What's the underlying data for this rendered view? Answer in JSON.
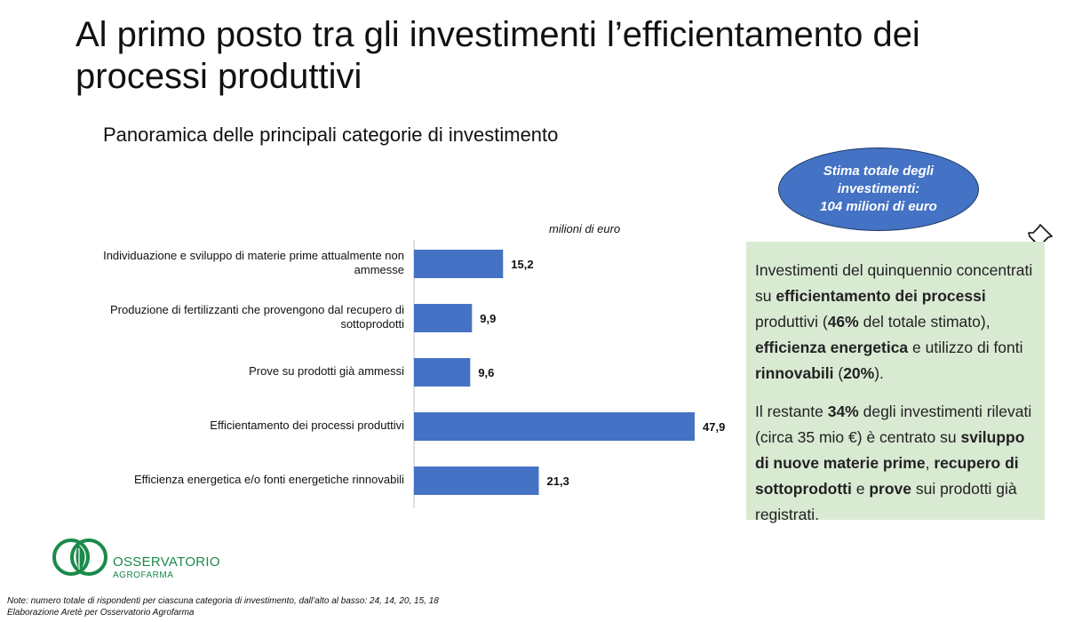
{
  "title": "Al primo posto tra gli investimenti l’efficientamento dei processi produttivi",
  "subtitle": "Panoramica delle principali categorie di investimento",
  "estimate": {
    "line1": "Stima totale degli",
    "line2": "investimenti:",
    "line3": "104 milioni di euro"
  },
  "summary": {
    "p1": [
      {
        "t": "Investimenti del quinquennio concentrati su ",
        "b": false
      },
      {
        "t": "efficientamento dei processi",
        "b": true
      },
      {
        "t": " produttivi (",
        "b": false
      },
      {
        "t": "46%",
        "b": true
      },
      {
        "t": " del totale stimato), ",
        "b": false
      },
      {
        "t": "efficienza energetica",
        "b": true
      },
      {
        "t": " e utilizzo di fonti ",
        "b": false
      },
      {
        "t": "rinnovabili",
        "b": true
      },
      {
        "t": " (",
        "b": false
      },
      {
        "t": "20%",
        "b": true
      },
      {
        "t": ").",
        "b": false
      }
    ],
    "p2": [
      {
        "t": "Il restante ",
        "b": false
      },
      {
        "t": "34%",
        "b": true
      },
      {
        "t": " degli investimenti rilevati (circa 35 mio €) è centrato su ",
        "b": false
      },
      {
        "t": "sviluppo di nuove materie prime",
        "b": true
      },
      {
        "t": ", ",
        "b": false
      },
      {
        "t": "recupero di sottoprodotti",
        "b": true
      },
      {
        "t": " e ",
        "b": false
      },
      {
        "t": "prove",
        "b": true
      },
      {
        "t": " sui prodotti già registrati.",
        "b": false
      }
    ]
  },
  "logo": {
    "line1": "OSSERVATORIO",
    "line2": "AGROFARMA"
  },
  "notes": [
    "Note: numero totale di rispondenti per ciascuna categoria di investimento, dall’alto al basso: 24, 14, 20, 15, 18",
    "Elaborazione Aretè per Osservatorio Agrofarma"
  ],
  "chart_data": {
    "type": "bar",
    "orientation": "horizontal",
    "unit_label": "milioni di euro",
    "categories": [
      [
        "Individuazione e sviluppo di materie prime attualmente non",
        "ammesse"
      ],
      [
        "Produzione di fertilizzanti che provengono dal recupero di",
        "sottoprodotti"
      ],
      [
        "Prove su prodotti già ammessi"
      ],
      [
        "Efficientamento dei processi produttivi"
      ],
      [
        "Efficienza energetica e/o fonti energetiche rinnovabili"
      ]
    ],
    "values": [
      15.2,
      9.9,
      9.6,
      47.9,
      21.3
    ],
    "value_labels": [
      "15,2",
      "9,9",
      "9,6",
      "47,9",
      "21,3"
    ],
    "xlim": [
      0,
      50
    ],
    "bar_color": "#4472c4",
    "grid": false
  },
  "colors": {
    "bar": "#4472c4",
    "ellipse": "#4472c4",
    "box": "#d9ead3",
    "logo": "#1a8a4a"
  }
}
